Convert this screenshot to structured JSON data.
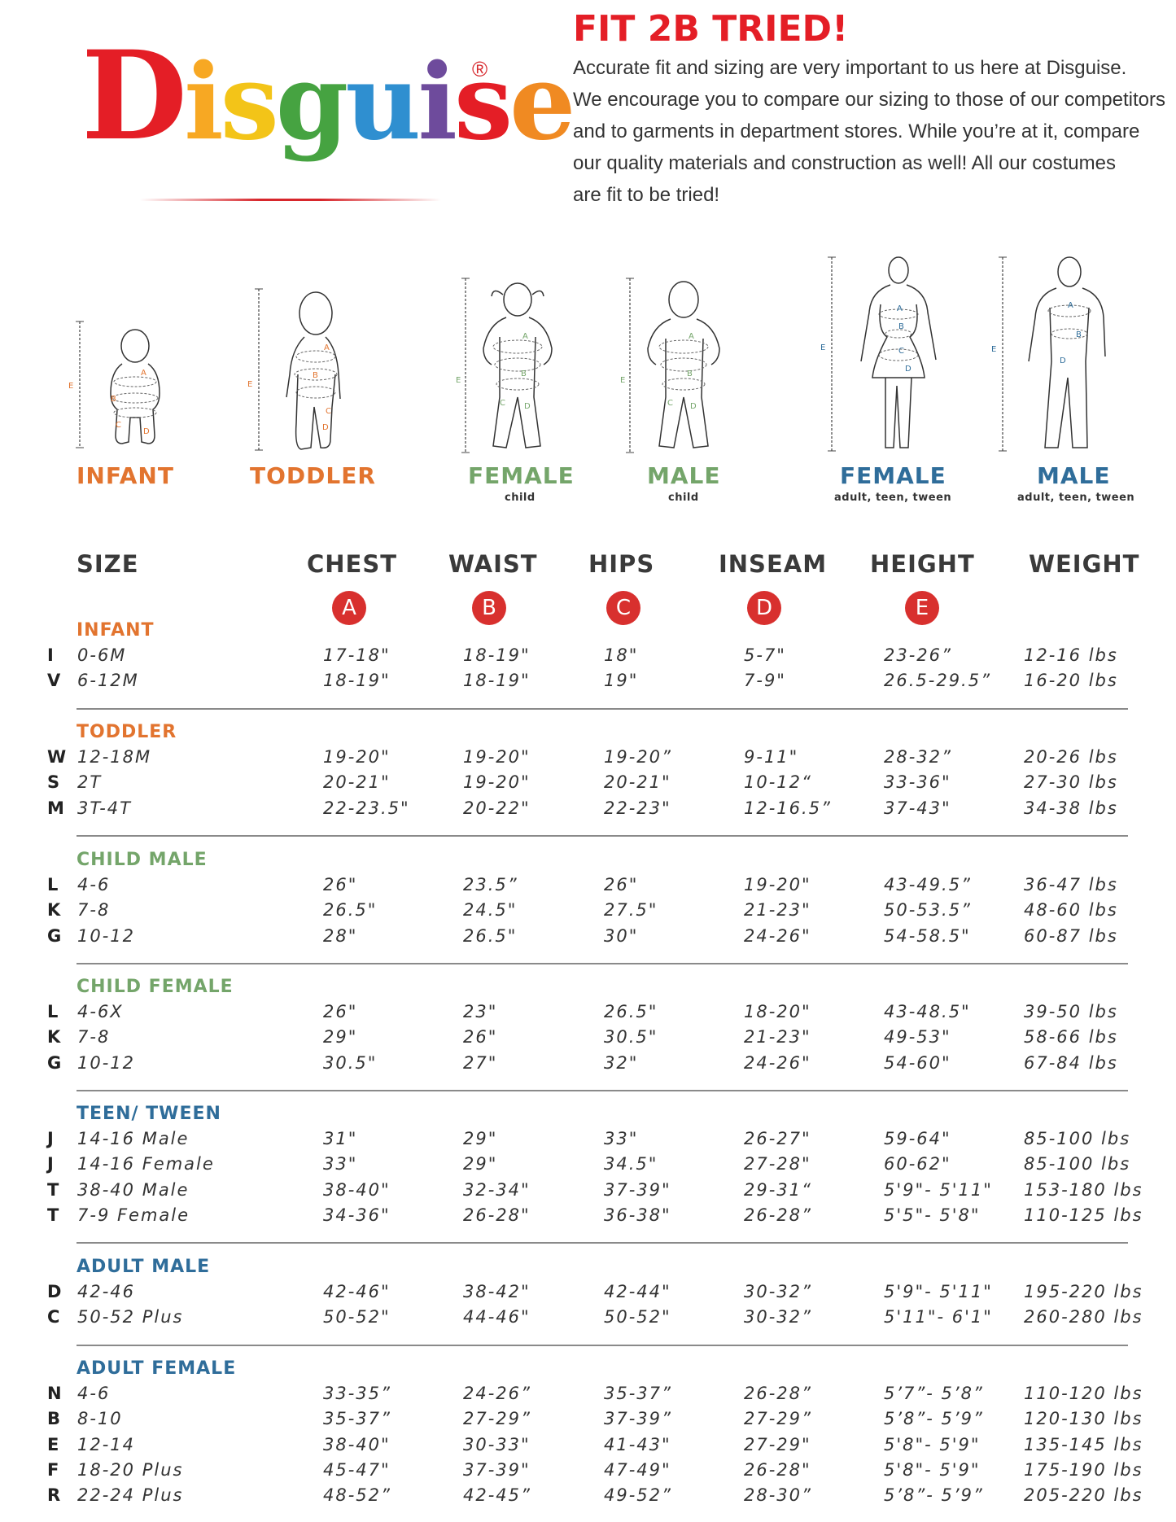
{
  "logo": {
    "letters": [
      {
        "ch": "D",
        "color": "#e41e26"
      },
      {
        "ch": "i",
        "color": "#f7a823"
      },
      {
        "ch": "s",
        "color": "#f3c418"
      },
      {
        "ch": "g",
        "color": "#46a341"
      },
      {
        "ch": "u",
        "color": "#2f8fd0"
      },
      {
        "ch": "i",
        "color": "#6e4b9c"
      },
      {
        "ch": "s",
        "color": "#e41e26"
      },
      {
        "ch": "e",
        "color": "#f08a22"
      }
    ],
    "reg": "®"
  },
  "intro": {
    "title": "FIT 2B TRIED!",
    "lines": [
      "Accurate fit and sizing are very important to us here at Disguise.",
      "We encourage you to compare our sizing to those of our competitors",
      "and to garments in department stores. While you’re at it, compare",
      "our quality materials and construction as well! All our costumes",
      "are fit to be tried!"
    ]
  },
  "colors": {
    "orange": "#e2742f",
    "green": "#74a56a",
    "blue": "#2f6d9a",
    "badge": "#d8302e",
    "title_red": "#e41e26"
  },
  "figures": [
    {
      "label": "INFANT",
      "sub": "",
      "color": "#e2742f"
    },
    {
      "label": "TODDLER",
      "sub": "",
      "color": "#e2742f"
    },
    {
      "label": "FEMALE",
      "sub": "child",
      "color": "#74a56a"
    },
    {
      "label": "MALE",
      "sub": "child",
      "color": "#74a56a"
    },
    {
      "label": "FEMALE",
      "sub": "adult, teen, tween",
      "color": "#2f6d9a"
    },
    {
      "label": "MALE",
      "sub": "adult, teen, tween",
      "color": "#2f6d9a"
    }
  ],
  "figure_marks": {
    "a": "A",
    "b": "B",
    "c": "C",
    "d": "D",
    "e": "E"
  },
  "table": {
    "headers": [
      "SIZE",
      "CHEST",
      "WAIST",
      "HIPS",
      "INSEAM",
      "HEIGHT",
      "WEIGHT"
    ],
    "badges": [
      "A",
      "B",
      "C",
      "D",
      "E"
    ],
    "sections": [
      {
        "title": "INFANT",
        "color": "#e2742f",
        "rows": [
          [
            "I",
            "0-6M",
            "17-18\"",
            "18-19\"",
            "18\"",
            "5-7\"",
            "23-26”",
            "12-16 lbs"
          ],
          [
            "V",
            "6-12M",
            "18-19\"",
            "18-19\"",
            "19\"",
            "7-9\"",
            "26.5-29.5”",
            "16-20 lbs"
          ]
        ]
      },
      {
        "title": "TODDLER",
        "color": "#e2742f",
        "rows": [
          [
            "W",
            "12-18M",
            "19-20\"",
            "19-20\"",
            "19-20”",
            "9-11\"",
            "28-32”",
            "20-26 lbs"
          ],
          [
            "S",
            "2T",
            "20-21\"",
            "19-20\"",
            "20-21\"",
            "10-12“",
            "33-36\"",
            "27-30 lbs"
          ],
          [
            "M",
            "3T-4T",
            "22-23.5\"",
            "20-22\"",
            "22-23\"",
            "12-16.5”",
            "37-43\"",
            "34-38 lbs"
          ]
        ]
      },
      {
        "title": "CHILD MALE",
        "color": "#74a56a",
        "rows": [
          [
            "L",
            "4-6",
            "26\"",
            "23.5”",
            "26\"",
            "19-20\"",
            "43-49.5”",
            "36-47 lbs"
          ],
          [
            "K",
            "7-8",
            "26.5\"",
            "24.5\"",
            "27.5\"",
            "21-23\"",
            "50-53.5”",
            "48-60 lbs"
          ],
          [
            "G",
            "10-12",
            "28\"",
            "26.5\"",
            "30\"",
            "24-26\"",
            "54-58.5\"",
            "60-87 lbs"
          ]
        ]
      },
      {
        "title": "CHILD FEMALE",
        "color": "#74a56a",
        "rows": [
          [
            "L",
            "4-6X",
            "26\"",
            "23\"",
            "26.5\"",
            "18-20\"",
            "43-48.5\"",
            "39-50 lbs"
          ],
          [
            "K",
            "7-8",
            "29\"",
            "26\"",
            "30.5\"",
            "21-23\"",
            "49-53\"",
            "58-66 lbs"
          ],
          [
            "G",
            "10-12",
            "30.5\"",
            "27\"",
            "32\"",
            "24-26\"",
            "54-60\"",
            "67-84 lbs"
          ]
        ]
      },
      {
        "title": "TEEN/ TWEEN",
        "color": "#2f6d9a",
        "rows": [
          [
            "J",
            "14-16 Male",
            "31\"",
            "29\"",
            "33\"",
            "26-27\"",
            "59-64\"",
            "85-100 lbs"
          ],
          [
            "J",
            "14-16 Female",
            "33\"",
            "29\"",
            "34.5\"",
            "27-28\"",
            "60-62\"",
            "85-100 lbs"
          ],
          [
            "T",
            "38-40 Male",
            "38-40\"",
            "32-34\"",
            "37-39\"",
            "29-31“",
            "5'9\"- 5'11\"",
            "153-180 lbs"
          ],
          [
            "T",
            "7-9 Female",
            "34-36\"",
            "26-28\"",
            "36-38\"",
            "26-28”",
            "5'5\"- 5'8\"",
            "110-125 lbs"
          ]
        ]
      },
      {
        "title": "ADULT MALE",
        "color": "#2f6d9a",
        "rows": [
          [
            "D",
            "42-46",
            "42-46\"",
            "38-42\"",
            "42-44\"",
            "30-32”",
            "5'9\"- 5'11\"",
            "195-220 lbs"
          ],
          [
            "C",
            "50-52 Plus",
            "50-52\"",
            "44-46\"",
            "50-52\"",
            "30-32”",
            "5'11\"- 6'1\"",
            "260-280 lbs"
          ]
        ]
      },
      {
        "title": "ADULT FEMALE",
        "color": "#2f6d9a",
        "rows": [
          [
            "N",
            "4-6",
            "33-35”",
            "24-26”",
            "35-37”",
            "26-28”",
            "5’7”- 5’8”",
            "110-120 lbs"
          ],
          [
            "B",
            "8-10",
            "35-37”",
            "27-29”",
            "37-39”",
            "27-29”",
            "5’8”- 5’9”",
            "120-130 lbs"
          ],
          [
            "E",
            "12-14",
            "38-40\"",
            "30-33\"",
            "41-43\"",
            "27-29\"",
            "5'8\"- 5'9\"",
            "135-145 lbs"
          ],
          [
            "F",
            "18-20 Plus",
            "45-47\"",
            "37-39\"",
            "47-49\"",
            "26-28\"",
            "5'8\"- 5'9\"",
            "175-190 lbs"
          ],
          [
            "R",
            "22-24 Plus",
            "48-52”",
            "42-45”",
            "49-52”",
            "28-30”",
            "5’8”- 5’9”",
            "205-220 lbs"
          ]
        ]
      }
    ]
  }
}
